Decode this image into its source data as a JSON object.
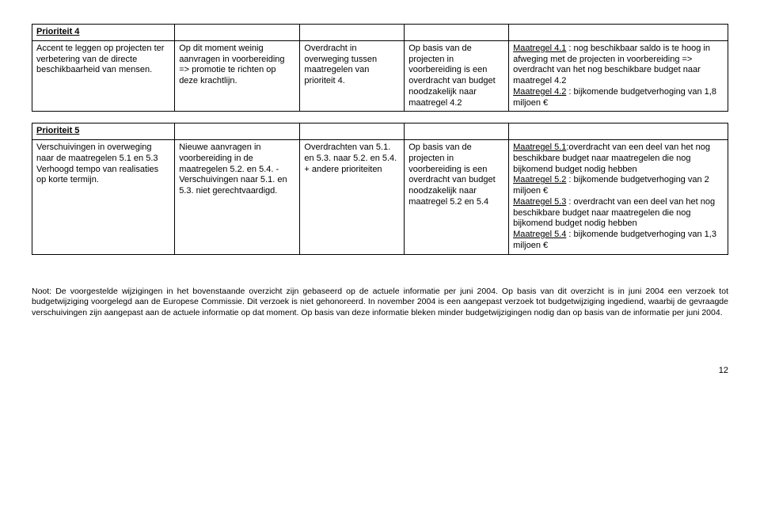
{
  "colWidths": [
    "20.5%",
    "18%",
    "15%",
    "15%",
    "31.5%"
  ],
  "table1": {
    "header": "Prioriteit 4",
    "row": [
      "Accent te leggen op projecten ter verbetering van de directe beschikbaarheid van mensen.",
      "Op dit moment weinig aanvragen in voorbereiding => promotie te richten op deze krachtlijn.",
      "Overdracht in overweging tussen maatregelen van prioriteit 4.",
      "Op basis van de projecten in voorbereiding is een overdracht van budget noodzakelijk naar maatregel 4.2",
      {
        "parts": [
          {
            "u": "Maatregel 4.1",
            "t": " : nog beschikbaar saldo is te hoog in afweging met de projecten in voorbereiding => overdracht van het nog beschikbare budget naar maatregel 4.2"
          },
          {
            "br": true
          },
          {
            "u": "Maatregel 4.2",
            "t": " : bijkomende budgetverhoging van 1,8 miljoen €"
          }
        ]
      }
    ]
  },
  "table2": {
    "header": "Prioriteit 5",
    "row": [
      {
        "parts": [
          {
            "t": "Verschuivingen in overweging naar de maatregelen 5.1 en 5.3"
          },
          {
            "br": true
          },
          {
            "t": "Verhoogd tempo van realisaties op korte termijn."
          }
        ]
      },
      "Nieuwe aanvragen in voorbereiding in de maatregelen 5.2. en  5.4. - Verschuivingen naar 5.1. en  5.3. niet gerechtvaardigd.",
      "Overdrachten van 5.1. en 5.3. naar 5.2. en 5.4. + andere prioriteiten",
      "Op basis van de projecten in voorbereiding is een overdracht van budget noodzakelijk naar maatregel 5.2 en 5.4",
      {
        "parts": [
          {
            "u": "Maatregel 5.1",
            "t": ":overdracht van een deel van het nog beschikbare budget naar maatregelen die nog bijkomend budget nodig hebben"
          },
          {
            "br": true
          },
          {
            "u": "Maatregel 5.2",
            "t": " : bijkomende budgetverhoging van 2 miljoen €"
          },
          {
            "br": true
          },
          {
            "u": "Maatregel 5.3",
            "t": " : overdracht van een deel van het nog beschikbare budget naar maatregelen die nog bijkomend budget nodig hebben"
          },
          {
            "br": true
          },
          {
            "u": "Maatregel 5.4",
            "t": " : bijkomende budgetverhoging van 1,3 miljoen €"
          }
        ]
      }
    ]
  },
  "footnote": "Noot: De voorgestelde wijzigingen in het bovenstaande overzicht zijn gebaseerd op de actuele informatie per juni 2004. Op basis van dit overzicht is in juni 2004 een verzoek tot budgetwijziging voorgelegd aan de Europese Commissie. Dit verzoek is niet gehonoreerd. In november 2004 is een aangepast verzoek tot budgetwijziging ingediend, waarbij de gevraagde verschuivingen zijn aangepast aan de actuele informatie op dat moment. Op basis van deze informatie bleken minder budgetwijzigingen nodig dan op basis van de informatie per juni 2004.",
  "pageNumber": "12"
}
